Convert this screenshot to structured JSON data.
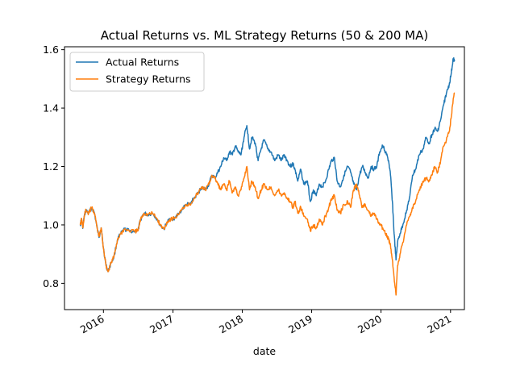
{
  "chart_data": {
    "type": "line",
    "title": "Actual Returns vs. ML Strategy Returns (50 & 200 MA)",
    "xlabel": "date",
    "ylabel": "",
    "x_axis": "date",
    "xlim": [
      "2015-06-10",
      "2021-03-15"
    ],
    "ylim": [
      0.71,
      1.61
    ],
    "x_ticks": [
      {
        "date": "2016-01-01",
        "label": "2016"
      },
      {
        "date": "2017-01-01",
        "label": "2017"
      },
      {
        "date": "2018-01-01",
        "label": "2018"
      },
      {
        "date": "2019-01-01",
        "label": "2019"
      },
      {
        "date": "2020-01-01",
        "label": "2020"
      },
      {
        "date": "2021-01-01",
        "label": "2021"
      }
    ],
    "y_ticks": [
      {
        "value": 0.8,
        "label": "0.8"
      },
      {
        "value": 1.0,
        "label": "1.0"
      },
      {
        "value": 1.2,
        "label": "1.2"
      },
      {
        "value": 1.4,
        "label": "1.4"
      },
      {
        "value": 1.6,
        "label": "1.6"
      }
    ],
    "grid": false,
    "legend": "top-left",
    "series": [
      {
        "name": "Actual Returns",
        "color": "#1f77b4",
        "points": [
          [
            "2015-09-01",
            1.0
          ],
          [
            "2015-09-08",
            1.02
          ],
          [
            "2015-09-15",
            0.99
          ],
          [
            "2015-09-22",
            1.03
          ],
          [
            "2015-10-01",
            1.05
          ],
          [
            "2015-10-15",
            1.04
          ],
          [
            "2015-11-01",
            1.06
          ],
          [
            "2015-11-15",
            1.04
          ],
          [
            "2015-12-01",
            0.98
          ],
          [
            "2015-12-10",
            0.96
          ],
          [
            "2015-12-20",
            0.99
          ],
          [
            "2016-01-01",
            0.92
          ],
          [
            "2016-01-15",
            0.86
          ],
          [
            "2016-01-25",
            0.84
          ],
          [
            "2016-02-10",
            0.87
          ],
          [
            "2016-02-25",
            0.89
          ],
          [
            "2016-03-15",
            0.95
          ],
          [
            "2016-04-01",
            0.97
          ],
          [
            "2016-04-20",
            0.985
          ],
          [
            "2016-05-15",
            0.98
          ],
          [
            "2016-06-15",
            0.978
          ],
          [
            "2016-07-01",
            0.98
          ],
          [
            "2016-07-15",
            1.02
          ],
          [
            "2016-08-01",
            1.04
          ],
          [
            "2016-08-20",
            1.035
          ],
          [
            "2016-09-15",
            1.04
          ],
          [
            "2016-10-10",
            1.02
          ],
          [
            "2016-10-25",
            1.0
          ],
          [
            "2016-11-15",
            0.985
          ],
          [
            "2016-12-01",
            1.01
          ],
          [
            "2016-12-20",
            1.02
          ],
          [
            "2017-01-15",
            1.025
          ],
          [
            "2017-02-15",
            1.05
          ],
          [
            "2017-03-10",
            1.07
          ],
          [
            "2017-04-01",
            1.07
          ],
          [
            "2017-04-20",
            1.09
          ],
          [
            "2017-05-15",
            1.11
          ],
          [
            "2017-06-01",
            1.13
          ],
          [
            "2017-06-20",
            1.12
          ],
          [
            "2017-07-10",
            1.14
          ],
          [
            "2017-07-25",
            1.17
          ],
          [
            "2017-08-10",
            1.16
          ],
          [
            "2017-08-25",
            1.18
          ],
          [
            "2017-09-10",
            1.2
          ],
          [
            "2017-09-25",
            1.23
          ],
          [
            "2017-10-10",
            1.22
          ],
          [
            "2017-10-25",
            1.25
          ],
          [
            "2017-11-10",
            1.24
          ],
          [
            "2017-11-25",
            1.27
          ],
          [
            "2017-12-10",
            1.25
          ],
          [
            "2017-12-25",
            1.24
          ],
          [
            "2018-01-10",
            1.3
          ],
          [
            "2018-01-25",
            1.34
          ],
          [
            "2018-02-08",
            1.26
          ],
          [
            "2018-02-20",
            1.3
          ],
          [
            "2018-03-10",
            1.28
          ],
          [
            "2018-03-25",
            1.22
          ],
          [
            "2018-04-10",
            1.26
          ],
          [
            "2018-04-25",
            1.29
          ],
          [
            "2018-05-15",
            1.26
          ],
          [
            "2018-06-01",
            1.25
          ],
          [
            "2018-06-20",
            1.22
          ],
          [
            "2018-07-10",
            1.24
          ],
          [
            "2018-07-25",
            1.22
          ],
          [
            "2018-08-10",
            1.24
          ],
          [
            "2018-08-25",
            1.22
          ],
          [
            "2018-09-10",
            1.2
          ],
          [
            "2018-09-25",
            1.21
          ],
          [
            "2018-10-05",
            1.19
          ],
          [
            "2018-10-20",
            1.15
          ],
          [
            "2018-11-05",
            1.19
          ],
          [
            "2018-11-20",
            1.14
          ],
          [
            "2018-12-10",
            1.15
          ],
          [
            "2018-12-25",
            1.08
          ],
          [
            "2019-01-10",
            1.12
          ],
          [
            "2019-01-25",
            1.1
          ],
          [
            "2019-02-10",
            1.14
          ],
          [
            "2019-02-25",
            1.13
          ],
          [
            "2019-03-15",
            1.15
          ],
          [
            "2019-04-01",
            1.19
          ],
          [
            "2019-04-15",
            1.22
          ],
          [
            "2019-05-01",
            1.23
          ],
          [
            "2019-05-15",
            1.15
          ],
          [
            "2019-06-01",
            1.13
          ],
          [
            "2019-06-20",
            1.17
          ],
          [
            "2019-07-10",
            1.2
          ],
          [
            "2019-07-25",
            1.18
          ],
          [
            "2019-08-10",
            1.14
          ],
          [
            "2019-08-25",
            1.12
          ],
          [
            "2019-09-10",
            1.17
          ],
          [
            "2019-09-25",
            1.2
          ],
          [
            "2019-10-10",
            1.18
          ],
          [
            "2019-10-25",
            1.16
          ],
          [
            "2019-11-10",
            1.2
          ],
          [
            "2019-11-25",
            1.19
          ],
          [
            "2019-12-10",
            1.2
          ],
          [
            "2019-12-25",
            1.25
          ],
          [
            "2020-01-10",
            1.27
          ],
          [
            "2020-01-25",
            1.25
          ],
          [
            "2020-02-10",
            1.22
          ],
          [
            "2020-02-20",
            1.17
          ],
          [
            "2020-03-01",
            1.08
          ],
          [
            "2020-03-10",
            0.97
          ],
          [
            "2020-03-20",
            0.88
          ],
          [
            "2020-03-28",
            0.94
          ],
          [
            "2020-04-10",
            0.97
          ],
          [
            "2020-04-25",
            1.0
          ],
          [
            "2020-05-15",
            1.05
          ],
          [
            "2020-06-01",
            1.1
          ],
          [
            "2020-06-15",
            1.17
          ],
          [
            "2020-07-01",
            1.19
          ],
          [
            "2020-07-20",
            1.24
          ],
          [
            "2020-08-10",
            1.26
          ],
          [
            "2020-08-25",
            1.3
          ],
          [
            "2020-09-10",
            1.28
          ],
          [
            "2020-09-25",
            1.31
          ],
          [
            "2020-10-10",
            1.33
          ],
          [
            "2020-10-25",
            1.32
          ],
          [
            "2020-11-10",
            1.36
          ],
          [
            "2020-11-25",
            1.41
          ],
          [
            "2020-12-10",
            1.45
          ],
          [
            "2020-12-25",
            1.48
          ],
          [
            "2021-01-05",
            1.52
          ],
          [
            "2021-01-15",
            1.57
          ],
          [
            "2021-01-22",
            1.56
          ]
        ]
      },
      {
        "name": "Strategy Returns",
        "color": "#ff7f0e",
        "points": [
          [
            "2015-09-01",
            1.0
          ],
          [
            "2015-09-08",
            1.02
          ],
          [
            "2015-09-15",
            0.99
          ],
          [
            "2015-09-22",
            1.03
          ],
          [
            "2015-10-01",
            1.05
          ],
          [
            "2015-10-15",
            1.04
          ],
          [
            "2015-11-01",
            1.06
          ],
          [
            "2015-11-15",
            1.04
          ],
          [
            "2015-12-01",
            0.98
          ],
          [
            "2015-12-10",
            0.96
          ],
          [
            "2015-12-20",
            0.99
          ],
          [
            "2016-01-01",
            0.92
          ],
          [
            "2016-01-15",
            0.86
          ],
          [
            "2016-01-25",
            0.84
          ],
          [
            "2016-02-10",
            0.87
          ],
          [
            "2016-02-25",
            0.89
          ],
          [
            "2016-03-15",
            0.95
          ],
          [
            "2016-04-01",
            0.97
          ],
          [
            "2016-04-20",
            0.985
          ],
          [
            "2016-05-15",
            0.98
          ],
          [
            "2016-06-15",
            0.978
          ],
          [
            "2016-07-01",
            0.98
          ],
          [
            "2016-07-15",
            1.02
          ],
          [
            "2016-08-01",
            1.04
          ],
          [
            "2016-08-20",
            1.035
          ],
          [
            "2016-09-15",
            1.04
          ],
          [
            "2016-10-10",
            1.02
          ],
          [
            "2016-10-25",
            1.0
          ],
          [
            "2016-11-15",
            0.985
          ],
          [
            "2016-12-01",
            1.01
          ],
          [
            "2016-12-20",
            1.02
          ],
          [
            "2017-01-15",
            1.025
          ],
          [
            "2017-02-15",
            1.05
          ],
          [
            "2017-03-10",
            1.07
          ],
          [
            "2017-04-01",
            1.07
          ],
          [
            "2017-04-20",
            1.09
          ],
          [
            "2017-05-15",
            1.11
          ],
          [
            "2017-06-01",
            1.13
          ],
          [
            "2017-06-20",
            1.12
          ],
          [
            "2017-07-10",
            1.14
          ],
          [
            "2017-07-25",
            1.17
          ],
          [
            "2017-08-10",
            1.16
          ],
          [
            "2017-08-25",
            1.14
          ],
          [
            "2017-09-10",
            1.12
          ],
          [
            "2017-09-25",
            1.14
          ],
          [
            "2017-10-10",
            1.12
          ],
          [
            "2017-10-25",
            1.15
          ],
          [
            "2017-11-10",
            1.11
          ],
          [
            "2017-11-25",
            1.13
          ],
          [
            "2017-12-10",
            1.1
          ],
          [
            "2017-12-25",
            1.12
          ],
          [
            "2018-01-10",
            1.16
          ],
          [
            "2018-01-25",
            1.2
          ],
          [
            "2018-02-08",
            1.12
          ],
          [
            "2018-02-20",
            1.15
          ],
          [
            "2018-03-10",
            1.13
          ],
          [
            "2018-03-25",
            1.09
          ],
          [
            "2018-04-10",
            1.12
          ],
          [
            "2018-04-25",
            1.14
          ],
          [
            "2018-05-15",
            1.12
          ],
          [
            "2018-06-01",
            1.13
          ],
          [
            "2018-06-20",
            1.1
          ],
          [
            "2018-07-10",
            1.12
          ],
          [
            "2018-07-25",
            1.1
          ],
          [
            "2018-08-10",
            1.11
          ],
          [
            "2018-08-25",
            1.09
          ],
          [
            "2018-09-10",
            1.08
          ],
          [
            "2018-09-25",
            1.06
          ],
          [
            "2018-10-05",
            1.08
          ],
          [
            "2018-10-20",
            1.04
          ],
          [
            "2018-11-05",
            1.06
          ],
          [
            "2018-11-20",
            1.03
          ],
          [
            "2018-12-10",
            1.02
          ],
          [
            "2018-12-25",
            0.98
          ],
          [
            "2019-01-10",
            1.0
          ],
          [
            "2019-01-25",
            0.99
          ],
          [
            "2019-02-10",
            1.02
          ],
          [
            "2019-02-25",
            1.0
          ],
          [
            "2019-03-15",
            1.03
          ],
          [
            "2019-04-01",
            1.06
          ],
          [
            "2019-04-15",
            1.09
          ],
          [
            "2019-05-01",
            1.1
          ],
          [
            "2019-05-15",
            1.05
          ],
          [
            "2019-06-01",
            1.04
          ],
          [
            "2019-06-20",
            1.07
          ],
          [
            "2019-07-10",
            1.08
          ],
          [
            "2019-07-25",
            1.06
          ],
          [
            "2019-08-10",
            1.12
          ],
          [
            "2019-08-25",
            1.14
          ],
          [
            "2019-09-10",
            1.1
          ],
          [
            "2019-09-25",
            1.06
          ],
          [
            "2019-10-10",
            1.07
          ],
          [
            "2019-10-25",
            1.05
          ],
          [
            "2019-11-10",
            1.03
          ],
          [
            "2019-11-25",
            1.04
          ],
          [
            "2019-12-10",
            1.02
          ],
          [
            "2019-12-25",
            1.0
          ],
          [
            "2020-01-10",
            0.99
          ],
          [
            "2020-01-25",
            0.97
          ],
          [
            "2020-02-10",
            0.95
          ],
          [
            "2020-02-20",
            0.93
          ],
          [
            "2020-03-01",
            0.88
          ],
          [
            "2020-03-10",
            0.82
          ],
          [
            "2020-03-20",
            0.76
          ],
          [
            "2020-03-28",
            0.86
          ],
          [
            "2020-04-10",
            0.9
          ],
          [
            "2020-04-25",
            0.94
          ],
          [
            "2020-05-15",
            1.0
          ],
          [
            "2020-06-01",
            1.03
          ],
          [
            "2020-06-15",
            1.06
          ],
          [
            "2020-07-01",
            1.08
          ],
          [
            "2020-07-20",
            1.12
          ],
          [
            "2020-08-10",
            1.15
          ],
          [
            "2020-08-25",
            1.16
          ],
          [
            "2020-09-10",
            1.15
          ],
          [
            "2020-09-25",
            1.17
          ],
          [
            "2020-10-10",
            1.2
          ],
          [
            "2020-10-25",
            1.18
          ],
          [
            "2020-11-10",
            1.22
          ],
          [
            "2020-11-25",
            1.27
          ],
          [
            "2020-12-10",
            1.29
          ],
          [
            "2020-12-25",
            1.32
          ],
          [
            "2021-01-05",
            1.37
          ],
          [
            "2021-01-15",
            1.43
          ],
          [
            "2021-01-22",
            1.45
          ]
        ]
      }
    ]
  }
}
